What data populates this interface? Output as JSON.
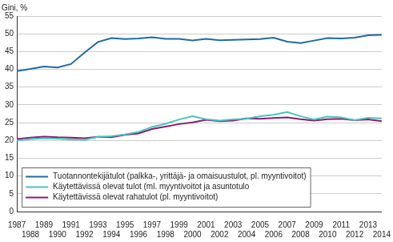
{
  "chart_data": {
    "type": "line",
    "y_label": "Gini, %",
    "categories": [
      "1987",
      "1988",
      "1989",
      "1990",
      "1991",
      "1992",
      "1993",
      "1994",
      "1995",
      "1996",
      "1997",
      "1998",
      "1999",
      "2000",
      "2001",
      "2002",
      "2003",
      "2004",
      "2005",
      "2006",
      "2007",
      "2008",
      "2009",
      "2010",
      "2011",
      "2012",
      "2013",
      "2014"
    ],
    "series": [
      {
        "name": "Tuotannontekijätulot (palkka-, yrittäjä- ja omaisuustulot, pl. myyntivoitot)",
        "color": "#1f6aa5",
        "values": [
          39.5,
          40.1,
          40.8,
          40.5,
          41.5,
          44.7,
          47.7,
          48.8,
          48.5,
          48.7,
          49.0,
          48.6,
          48.6,
          48.1,
          48.6,
          48.2,
          48.3,
          48.4,
          48.5,
          48.9,
          47.8,
          47.4,
          48.1,
          48.8,
          48.7,
          48.9,
          49.6,
          49.7
        ]
      },
      {
        "name": "Käytettävissä olevat tulot (ml. myyntivoitot ja asuntotulo",
        "color": "#45c6bf",
        "values": [
          20.0,
          20.4,
          20.6,
          20.5,
          20.3,
          20.2,
          21.0,
          21.2,
          21.7,
          22.4,
          23.8,
          24.7,
          25.9,
          26.8,
          26.0,
          25.6,
          25.9,
          26.1,
          26.8,
          27.2,
          28.0,
          26.8,
          25.9,
          26.7,
          26.5,
          25.7,
          26.4,
          26.2
        ]
      },
      {
        "name": "Käytettävissä olevat rahatulot (pl. myyntivoitot)",
        "color": "#8c1a6e",
        "values": [
          20.4,
          20.8,
          21.1,
          20.9,
          20.8,
          20.6,
          21.0,
          20.9,
          21.6,
          22.0,
          23.2,
          23.9,
          24.6,
          25.1,
          25.8,
          25.4,
          25.6,
          26.2,
          26.1,
          26.3,
          26.5,
          26.0,
          25.6,
          26.0,
          26.1,
          25.7,
          25.9,
          25.4
        ]
      }
    ],
    "ylim": [
      0,
      55
    ],
    "yticks": [
      0,
      5,
      10,
      15,
      20,
      25,
      30,
      35,
      40,
      45,
      50,
      55
    ],
    "grid": true,
    "legend": "lower left"
  }
}
